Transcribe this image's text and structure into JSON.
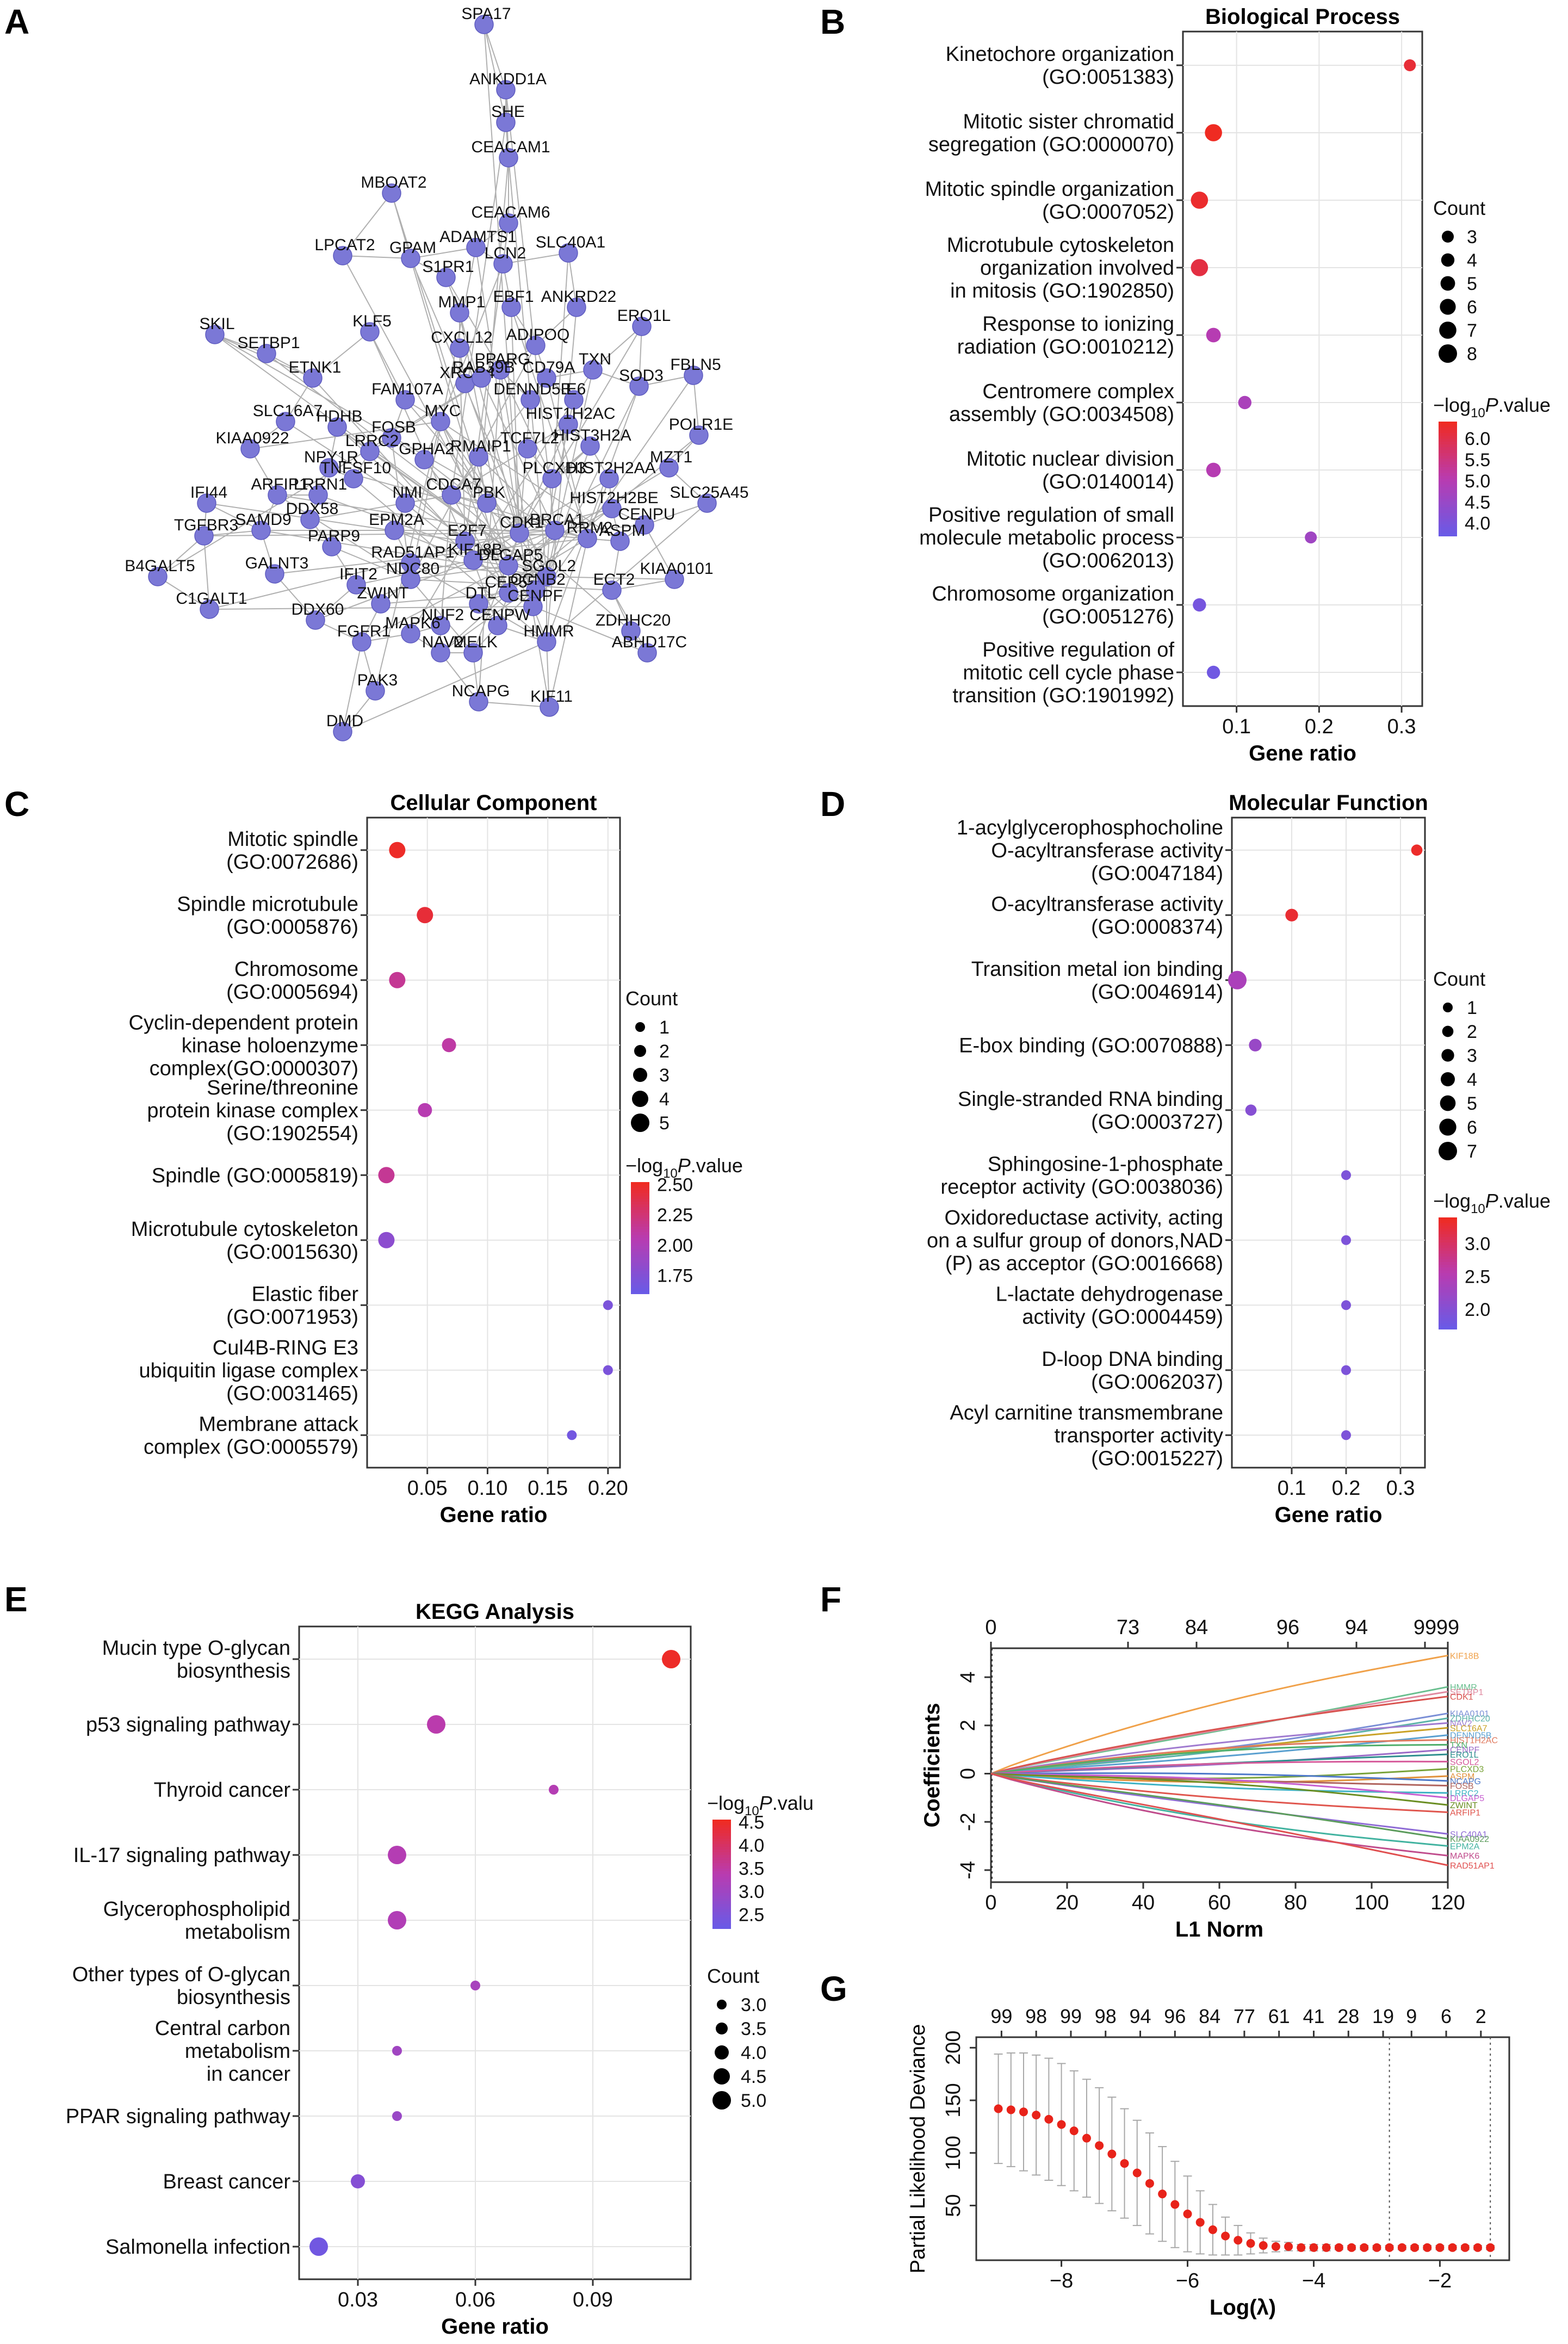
{
  "panel_labels": [
    "A",
    "B",
    "C",
    "D",
    "E",
    "F",
    "G"
  ],
  "colorbar_label": "−log10P.value",
  "colorbar_label_parts": {
    "prefix": "−log",
    "sub": "10",
    "italic": "P",
    "suffix": ".value"
  },
  "count_label": "Count",
  "colors": {
    "low": "#6a5ae6",
    "mid": "#b93bb0",
    "high": "#ef2b22",
    "node": "#7b78d6",
    "edge": "#b0b0b0",
    "panel_bg": "#ebebeb",
    "grid": "#ffffff",
    "lambda_point": "#e8231a"
  },
  "network": {
    "type": "network",
    "nodes": [
      "SPA17",
      "ANKDD1A",
      "SHE",
      "CEACAM1",
      "MBOAT2",
      "CEACAM6",
      "ADAMTS1",
      "SLC40A1",
      "LPCAT2",
      "GPAM",
      "LCN2",
      "S1PR1",
      "EBF1",
      "ANKRD22",
      "ERO1L",
      "SKIL",
      "SETBP1",
      "KLF5",
      "MMP1",
      "CXCL12",
      "ADIPOQ",
      "TXN",
      "FBLN5",
      "ETNK1",
      "FAM107A",
      "PPARG",
      "CD79A",
      "SOD3",
      "XRCC4",
      "RAB39B",
      "DENND5B",
      "E6",
      "SLC16A7",
      "HDHB",
      "FOSB",
      "MYC",
      "HIST1H2AC",
      "POLR1E",
      "KIAA0922",
      "LRRC2",
      "NPY1R",
      "TNFSF10",
      "GPHA2",
      "RMAIP1",
      "TCF7L2",
      "HIST3H2A",
      "MZT1",
      "IFI44",
      "ARFIP1",
      "LRRN1",
      "NMI",
      "CDCA7",
      "PBK",
      "PLCXD3",
      "HIST2H2AA",
      "SLC25A45",
      "TGFBR3",
      "SAMD9",
      "DDX58",
      "EPM2A",
      "HIST2H2BE",
      "CENPU",
      "PARP9",
      "E2F7",
      "CDK1",
      "BRCA1",
      "ASPM",
      "B4GALT5",
      "GALNT3",
      "RAD51AP1",
      "KIF18B",
      "DLGAP5",
      "RRM2",
      "IFIT2",
      "NDC80",
      "SGOL2",
      "ECT2",
      "KIAA0101",
      "C1GALT1",
      "ZWINT",
      "CEP55",
      "CCNB2",
      "DTL",
      "CENPF",
      "ZDHHC20",
      "DDX60",
      "NUF2",
      "CENPW",
      "FGFR1",
      "MAPK6",
      "MELK",
      "HMMR",
      "ABHD17C",
      "NAV2",
      "PAK3",
      "NCAPG",
      "KIF11",
      "DMD"
    ]
  },
  "bp": {
    "type": "scatter",
    "title": "Biological Process",
    "xlabel": "Gene ratio",
    "xlim": [
      0.035,
      0.325
    ],
    "xticks": [
      0.1,
      0.2,
      0.3
    ],
    "xtick_labels": [
      "0.1",
      "0.2",
      "0.3"
    ],
    "count_range": [
      3,
      8
    ],
    "count_legend": [
      3,
      4,
      5,
      6,
      7,
      8
    ],
    "pval_range": [
      3.7,
      6.4
    ],
    "pval_ticks": [
      6.0,
      5.5,
      5.0,
      4.5,
      4.0
    ],
    "pval_tick_labels": [
      "6.0",
      "5.5",
      "5.0",
      "4.5",
      "4.0"
    ],
    "terms": [
      {
        "label": [
          "Kinetochore organization",
          "(GO:0051383)"
        ],
        "x": 0.31,
        "count": 3,
        "p": 6.2
      },
      {
        "label": [
          "Mitotic sister chromatid",
          "segregation (GO:0000070)"
        ],
        "x": 0.072,
        "count": 7,
        "p": 6.4
      },
      {
        "label": [
          "Mitotic spindle organization",
          "(GO:0007052)"
        ],
        "x": 0.055,
        "count": 7,
        "p": 6.3
      },
      {
        "label": [
          "Microtubule cytoskeleton",
          "organization involved",
          "in mitosis (GO:1902850)"
        ],
        "x": 0.055,
        "count": 7,
        "p": 6.1
      },
      {
        "label": [
          "Response to ionizing",
          "radiation (GO:0010212)"
        ],
        "x": 0.072,
        "count": 5,
        "p": 5.0
      },
      {
        "label": [
          "Centromere complex",
          "assembly (GO:0034508)"
        ],
        "x": 0.11,
        "count": 4,
        "p": 4.8
      },
      {
        "label": [
          "Mitotic nuclear division",
          "(GO:0140014)"
        ],
        "x": 0.072,
        "count": 5,
        "p": 5.0
      },
      {
        "label": [
          "Positive regulation of small",
          "molecule metabolic process",
          "(GO:0062013)"
        ],
        "x": 0.19,
        "count": 3,
        "p": 4.6
      },
      {
        "label": [
          "Chromosome organization",
          "(GO:0051276)"
        ],
        "x": 0.055,
        "count": 4,
        "p": 3.9
      },
      {
        "label": [
          "Positive regulation of",
          "mitotic cell cycle phase",
          "transition (GO:1901992)"
        ],
        "x": 0.072,
        "count": 4,
        "p": 3.8
      }
    ]
  },
  "cc": {
    "type": "scatter",
    "title": "Cellular Component",
    "xlabel": "Gene ratio",
    "xlim": [
      0.0,
      0.21
    ],
    "xticks": [
      0.05,
      0.1,
      0.15,
      0.2
    ],
    "xtick_labels": [
      "0.05",
      "0.10",
      "0.15",
      "0.20"
    ],
    "count_range": [
      1,
      5
    ],
    "count_legend": [
      1,
      2,
      3,
      4,
      5
    ],
    "pval_range": [
      1.6,
      2.52
    ],
    "pval_ticks": [
      2.5,
      2.25,
      2.0,
      1.75
    ],
    "pval_tick_labels": [
      "2.50",
      "2.25",
      "2.00",
      "1.75"
    ],
    "terms": [
      {
        "label": [
          "Mitotic spindle",
          "(GO:0072686)"
        ],
        "x": 0.025,
        "count": 4,
        "p": 2.5
      },
      {
        "label": [
          "Spindle microtubule",
          "(GO:0005876)"
        ],
        "x": 0.048,
        "count": 4,
        "p": 2.45
      },
      {
        "label": [
          "Chromosome",
          "(GO:0005694)"
        ],
        "x": 0.025,
        "count": 4,
        "p": 2.15
      },
      {
        "label": [
          "Cyclin-dependent protein",
          "kinase holoenzyme",
          "complex(GO:0000307)"
        ],
        "x": 0.068,
        "count": 3,
        "p": 2.1
      },
      {
        "label": [
          "Serine/threonine",
          "protein kinase complex",
          "(GO:1902554)"
        ],
        "x": 0.048,
        "count": 3,
        "p": 2.05
      },
      {
        "label": [
          "Spindle (GO:0005819)"
        ],
        "x": 0.016,
        "count": 4,
        "p": 2.15
      },
      {
        "label": [
          "Microtubule cytoskeleton",
          "(GO:0015630)"
        ],
        "x": 0.016,
        "count": 4,
        "p": 1.8
      },
      {
        "label": [
          "Elastic fiber",
          "(GO:0071953)"
        ],
        "x": 0.2,
        "count": 1,
        "p": 1.7
      },
      {
        "label": [
          "Cul4B-RING E3",
          "ubiquitin ligase complex",
          "(GO:0031465)"
        ],
        "x": 0.2,
        "count": 1,
        "p": 1.7
      },
      {
        "label": [
          "Membrane attack",
          "complex (GO:0005579)"
        ],
        "x": 0.17,
        "count": 1,
        "p": 1.65
      }
    ]
  },
  "mf": {
    "type": "scatter",
    "title": "Molecular Function",
    "xlabel": "Gene ratio",
    "xlim": [
      -0.01,
      0.345
    ],
    "xticks": [
      0.1,
      0.2,
      0.3
    ],
    "xtick_labels": [
      "0.1",
      "0.2",
      "0.3"
    ],
    "count_range": [
      1,
      7
    ],
    "count_legend": [
      1,
      2,
      3,
      4,
      5,
      6,
      7
    ],
    "pval_range": [
      1.7,
      3.4
    ],
    "pval_ticks": [
      3.0,
      2.5,
      2.0
    ],
    "pval_tick_labels": [
      "3.0",
      "2.5",
      "2.0"
    ],
    "terms": [
      {
        "label": [
          "1-acylglycerophosphocholine",
          "O-acyltransferase activity",
          "(GO:0047184)"
        ],
        "x": 0.33,
        "count": 2,
        "p": 3.35
      },
      {
        "label": [
          "O-acyltransferase activity",
          "(GO:0008374)"
        ],
        "x": 0.1,
        "count": 3,
        "p": 3.3
      },
      {
        "label": [
          "Transition metal ion binding",
          "(GO:0046914)"
        ],
        "x": 0.0,
        "count": 7,
        "p": 2.4
      },
      {
        "label": [
          "E-box binding (GO:0070888)"
        ],
        "x": 0.033,
        "count": 3,
        "p": 2.2
      },
      {
        "label": [
          "Single-stranded RNA binding",
          "(GO:0003727)"
        ],
        "x": 0.025,
        "count": 2,
        "p": 2.0
      },
      {
        "label": [
          "Sphingosine-1-phosphate",
          "receptor activity (GO:0038036)"
        ],
        "x": 0.2,
        "count": 1,
        "p": 1.9
      },
      {
        "label": [
          "Oxidoreductase activity, acting",
          "on a sulfur group of donors,NAD",
          "(P) as acceptor (GO:0016668)"
        ],
        "x": 0.2,
        "count": 1,
        "p": 1.9
      },
      {
        "label": [
          "L-lactate dehydrogenase",
          "activity (GO:0004459)"
        ],
        "x": 0.2,
        "count": 1,
        "p": 1.9
      },
      {
        "label": [
          "D-loop DNA binding",
          "(GO:0062037)"
        ],
        "x": 0.2,
        "count": 1,
        "p": 1.9
      },
      {
        "label": [
          "Acyl carnitine transmembrane",
          "transporter activity",
          "(GO:0015227)"
        ],
        "x": 0.2,
        "count": 1,
        "p": 1.9
      }
    ]
  },
  "kegg": {
    "type": "scatter",
    "title": "KEGG Analysis",
    "xlabel": "Gene ratio",
    "xlim": [
      0.015,
      0.115
    ],
    "xticks": [
      0.03,
      0.06,
      0.09
    ],
    "xtick_labels": [
      "0.03",
      "0.06",
      "0.09"
    ],
    "count_range": [
      3.0,
      5.0
    ],
    "count_legend": [
      3.0,
      3.5,
      4.0,
      4.5,
      5.0
    ],
    "count_legend_labels": [
      "3.0",
      "3.5",
      "4.0",
      "4.5",
      "5.0"
    ],
    "colorbar_label_truncated": "−log10P.valu",
    "pval_range": [
      2.2,
      4.55
    ],
    "pval_ticks": [
      4.5,
      4.0,
      3.5,
      3.0,
      2.5
    ],
    "pval_tick_labels": [
      "4.5",
      "4.0",
      "3.5",
      "3.0",
      "2.5"
    ],
    "terms": [
      {
        "label": [
          "Mucin type O-glycan",
          "biosynthesis"
        ],
        "x": 0.11,
        "count": 5,
        "p": 4.5
      },
      {
        "label": [
          "p53 signaling pathway"
        ],
        "x": 0.05,
        "count": 5,
        "p": 3.4
      },
      {
        "label": [
          "Thyroid cancer"
        ],
        "x": 0.08,
        "count": 3,
        "p": 3.3
      },
      {
        "label": [
          "IL-17 signaling pathway"
        ],
        "x": 0.04,
        "count": 5,
        "p": 3.3
      },
      {
        "label": [
          "Glycerophospholipid",
          "metabolism"
        ],
        "x": 0.04,
        "count": 5,
        "p": 3.25
      },
      {
        "label": [
          "Other types of O-glycan",
          "biosynthesis"
        ],
        "x": 0.06,
        "count": 3,
        "p": 3.1
      },
      {
        "label": [
          "Central carbon",
          "metabolism",
          "in cancer"
        ],
        "x": 0.04,
        "count": 3,
        "p": 3.0
      },
      {
        "label": [
          "PPAR signaling pathway"
        ],
        "x": 0.04,
        "count": 3,
        "p": 2.9
      },
      {
        "label": [
          "Breast cancer"
        ],
        "x": 0.03,
        "count": 4,
        "p": 2.6
      },
      {
        "label": [
          "Salmonella infection"
        ],
        "x": 0.02,
        "count": 5,
        "p": 2.3
      }
    ]
  },
  "lasso_path": {
    "type": "line",
    "xlabel": "L1 Norm",
    "ylabel": "Coefficients",
    "xlim": [
      0,
      120
    ],
    "ylim": [
      -4.5,
      5.2
    ],
    "xticks": [
      0,
      20,
      40,
      60,
      80,
      100,
      120
    ],
    "yticks": [
      -4,
      -2,
      0,
      2,
      4
    ],
    "top_ticks": [
      0,
      36,
      54,
      78,
      96,
      114,
      120
    ],
    "top_tick_labels": [
      "0",
      "73",
      "84",
      "96",
      "94",
      "99",
      "99"
    ],
    "end_labels": [
      "KIF18B",
      "HMMR",
      "SETBP1",
      "CDK1",
      "KIAA0101",
      "ZDHHC20",
      "NAV2",
      "SLC16A7",
      "DENND5B",
      "HIST1H2AC",
      "TXN",
      "CENPF",
      "ERO1L",
      "SGOL2",
      "PLCXD3",
      "ASPM",
      "NCAPG",
      "FOSB",
      "LRRC2",
      "DLGAP5",
      "ZWINT",
      "ARFIP1",
      "SLC40A1",
      "KIAA0922",
      "EPM2A",
      "MAPK6",
      "RAD51AP1"
    ],
    "end_values": [
      4.9,
      3.6,
      3.4,
      3.2,
      2.5,
      2.3,
      2.1,
      1.9,
      1.6,
      1.4,
      1.2,
      1.0,
      0.8,
      0.5,
      0.2,
      -0.1,
      -0.3,
      -0.5,
      -0.8,
      -1.0,
      -1.3,
      -1.6,
      -2.5,
      -2.7,
      -3.0,
      -3.4,
      -3.8
    ],
    "end_colors": [
      "#f0a14a",
      "#6abf8f",
      "#e08aa0",
      "#d9534f",
      "#7b8fd6",
      "#5cb3a8",
      "#a07bd0",
      "#c9a227",
      "#5aa0d0",
      "#e07a5f",
      "#4fae6a",
      "#9b6bc7",
      "#2f8f8f",
      "#d65a9a",
      "#7aa33a",
      "#e0913b",
      "#4e79c9",
      "#b0645e",
      "#3fb3c5",
      "#c75fd0",
      "#6b8e23",
      "#e0564e",
      "#8f6cd6",
      "#5c9c5c",
      "#42b3a0",
      "#c04c8c",
      "#e05050"
    ]
  },
  "lasso_cv": {
    "type": "line",
    "xlabel": "Log(λ)",
    "ylabel": "Partial Likelihood Deviance",
    "xlim": [
      -9.35,
      -0.9
    ],
    "ylim": [
      -2,
      210
    ],
    "xticks": [
      -8,
      -6,
      -4,
      -2
    ],
    "xtick_labels": [
      "−8",
      "−6",
      "−4",
      "−2"
    ],
    "yticks": [
      50,
      100,
      150,
      200
    ],
    "ytick_labels": [
      "50",
      "100",
      "150",
      "200"
    ],
    "top_ticks": [
      -8.95,
      -8.4,
      -7.85,
      -7.3,
      -6.75,
      -6.2,
      -5.65,
      -5.1,
      -4.55,
      -4.0,
      -3.45,
      -2.9,
      -2.45,
      -1.9,
      -1.35
    ],
    "top_tick_labels": [
      "99",
      "98",
      "99",
      "98",
      "94",
      "96",
      "84",
      "77",
      "61",
      "41",
      "28",
      "19",
      "9",
      "6",
      "2"
    ],
    "vlines": [
      -2.8,
      -1.2
    ],
    "x": [
      -9.0,
      -8.8,
      -8.6,
      -8.4,
      -8.2,
      -8.0,
      -7.8,
      -7.6,
      -7.4,
      -7.2,
      -7.0,
      -6.8,
      -6.6,
      -6.4,
      -6.2,
      -6.0,
      -5.8,
      -5.6,
      -5.4,
      -5.2,
      -5.0,
      -4.8,
      -4.6,
      -4.4,
      -4.2,
      -4.0,
      -3.8,
      -3.6,
      -3.4,
      -3.2,
      -3.0,
      -2.8,
      -2.6,
      -2.4,
      -2.2,
      -2.0,
      -1.8,
      -1.6,
      -1.4,
      -1.2
    ],
    "y": [
      142,
      141,
      139,
      136,
      132,
      127,
      121,
      114,
      107,
      99,
      90,
      81,
      71,
      61,
      51,
      42,
      34,
      27,
      21,
      17,
      14,
      12,
      11,
      11,
      10,
      10,
      10,
      10,
      10,
      10,
      10,
      10,
      10,
      10,
      10,
      10,
      10,
      10,
      10,
      10
    ],
    "err": [
      52,
      54,
      56,
      57,
      58,
      58,
      57,
      56,
      55,
      54,
      52,
      50,
      48,
      45,
      41,
      36,
      30,
      24,
      18,
      14,
      10,
      7,
      5,
      4,
      3,
      3,
      3,
      2,
      2,
      2,
      2,
      2,
      2,
      2,
      2,
      2,
      2,
      2,
      2,
      2
    ]
  }
}
